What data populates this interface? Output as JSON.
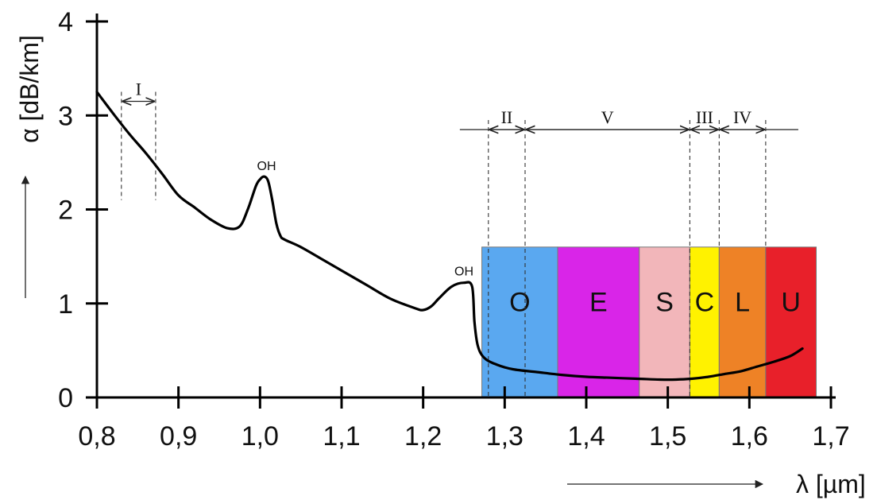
{
  "chart_data": {
    "type": "line",
    "xlabel": "λ [µm]",
    "ylabel": "α [dB/km]",
    "xlim": [
      0.8,
      1.7
    ],
    "ylim": [
      0,
      4
    ],
    "x_ticks": [
      {
        "value": 0.8,
        "label": "0,8"
      },
      {
        "value": 0.9,
        "label": "0,9"
      },
      {
        "value": 1.0,
        "label": "1,0"
      },
      {
        "value": 1.1,
        "label": "1,1"
      },
      {
        "value": 1.2,
        "label": "1,2"
      },
      {
        "value": 1.3,
        "label": "1,3"
      },
      {
        "value": 1.4,
        "label": "1,4"
      },
      {
        "value": 1.5,
        "label": "1,5"
      },
      {
        "value": 1.6,
        "label": "1,6"
      },
      {
        "value": 1.7,
        "label": "1,7"
      }
    ],
    "y_ticks": [
      {
        "value": 0,
        "label": "0"
      },
      {
        "value": 1,
        "label": "1"
      },
      {
        "value": 2,
        "label": "2"
      },
      {
        "value": 3,
        "label": "3"
      },
      {
        "value": 4,
        "label": "4"
      }
    ],
    "series": [
      {
        "x": [
          0.8,
          0.82,
          0.84,
          0.86,
          0.88,
          0.9,
          0.92,
          0.94,
          0.96,
          0.975,
          0.985,
          0.995,
          1.0,
          1.005,
          1.01,
          1.015,
          1.02,
          1.025,
          1.03,
          1.05,
          1.08,
          1.1,
          1.13,
          1.16,
          1.19,
          1.2,
          1.21,
          1.22,
          1.235,
          1.25,
          1.26,
          1.263,
          1.267,
          1.275,
          1.29,
          1.31,
          1.34,
          1.37,
          1.4,
          1.43,
          1.46,
          1.49,
          1.51,
          1.53,
          1.55,
          1.57,
          1.59,
          1.61,
          1.63,
          1.65,
          1.665
        ],
        "y": [
          3.25,
          3.02,
          2.8,
          2.6,
          2.38,
          2.15,
          2.02,
          1.89,
          1.8,
          1.82,
          2.0,
          2.25,
          2.32,
          2.35,
          2.3,
          2.1,
          1.85,
          1.72,
          1.68,
          1.6,
          1.45,
          1.35,
          1.2,
          1.05,
          0.95,
          0.93,
          0.97,
          1.06,
          1.18,
          1.22,
          1.18,
          0.8,
          0.55,
          0.42,
          0.35,
          0.3,
          0.27,
          0.24,
          0.22,
          0.21,
          0.2,
          0.19,
          0.19,
          0.2,
          0.22,
          0.25,
          0.28,
          0.33,
          0.38,
          0.44,
          0.52
        ]
      }
    ],
    "peak_annotations": [
      {
        "x": 1.008,
        "y": 2.42,
        "label": "OH"
      },
      {
        "x": 1.25,
        "y": 1.3,
        "label": "OH"
      }
    ],
    "bands": [
      {
        "label": "O",
        "x0": 1.272,
        "x1": 1.365,
        "color": "#5aa8f0"
      },
      {
        "label": "E",
        "x0": 1.365,
        "x1": 1.465,
        "color": "#d925e8"
      },
      {
        "label": "S",
        "x0": 1.465,
        "x1": 1.527,
        "color": "#f2b6ba"
      },
      {
        "label": "C",
        "x0": 1.527,
        "x1": 1.563,
        "color": "#fff200"
      },
      {
        "label": "L",
        "x0": 1.563,
        "x1": 1.62,
        "color": "#ee8226"
      },
      {
        "label": "U",
        "x0": 1.62,
        "x1": 1.682,
        "color": "#e8202a"
      }
    ],
    "band_top": 1.6,
    "windows": [
      {
        "label": "I",
        "x0": 0.83,
        "x1": 0.872,
        "y": 3.15,
        "drop_to": 2.1
      },
      {
        "label": "II",
        "x0": 1.28,
        "x1": 1.325,
        "y": 2.85,
        "drop_to": 0.0
      },
      {
        "label": "V",
        "x0": 1.325,
        "x1": 1.527,
        "y": 2.85,
        "drop_to": 0.0
      },
      {
        "label": "III",
        "x0": 1.527,
        "x1": 1.563,
        "y": 2.85,
        "drop_to": 1.6
      },
      {
        "label": "IV",
        "x0": 1.563,
        "x1": 1.62,
        "y": 2.85,
        "drop_to": 1.6
      }
    ]
  }
}
